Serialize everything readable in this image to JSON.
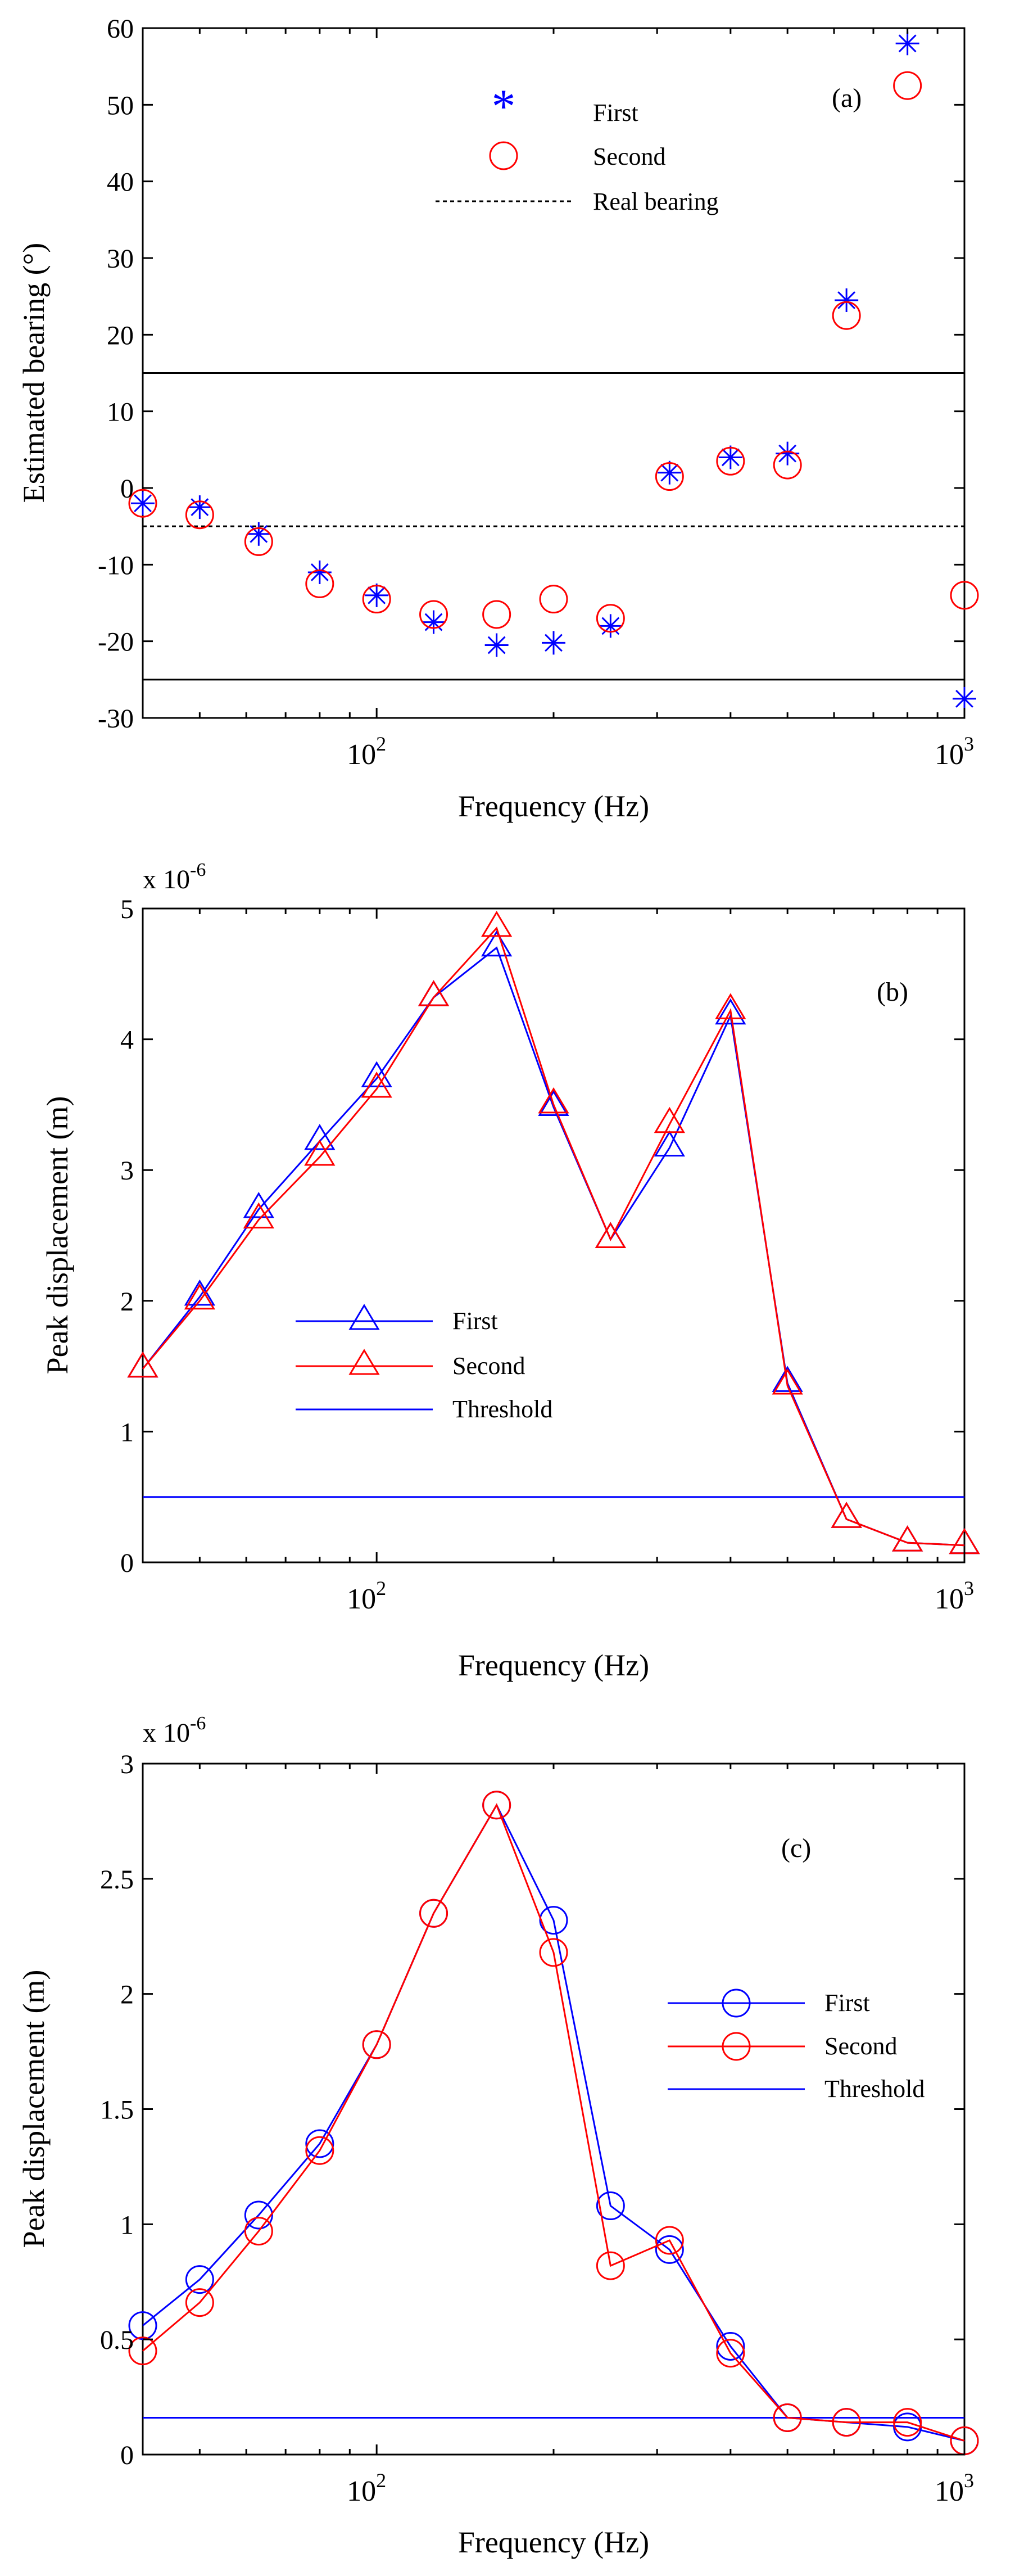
{
  "colors": {
    "first": "#0000ff",
    "second": "#ff0000",
    "axis": "#000000"
  },
  "chart_data": [
    {
      "id": "a",
      "type": "scatter",
      "panel_label": "(a)",
      "xlabel": "Frequency (Hz)",
      "ylabel": "Estimated bearing (°)",
      "xscale": "log",
      "xlim": [
        40,
        1000
      ],
      "ylim": [
        -30,
        60
      ],
      "yticks": [
        -30,
        -20,
        -10,
        0,
        10,
        20,
        30,
        40,
        50,
        60
      ],
      "ytick_labels": [
        "-30",
        "-20",
        "-10",
        "0",
        "10",
        "20",
        "30",
        "40",
        "50",
        "60"
      ],
      "xtick_labels": [
        {
          "base": "10",
          "exp": "2",
          "value": 100
        },
        {
          "base": "10",
          "exp": "3",
          "value": 1000
        }
      ],
      "legend_position": "top-center",
      "series": [
        {
          "name": "First",
          "marker": "asterisk",
          "color": "#0000ff",
          "line": false,
          "x": [
            40,
            50,
            63,
            80,
            100,
            125,
            160,
            200,
            250,
            315,
            400,
            500,
            630,
            800,
            1000
          ],
          "y": [
            -2,
            -2.5,
            -6,
            -11,
            -14,
            -17.5,
            -20.5,
            -20.2,
            -18,
            2,
            4,
            4.5,
            24.5,
            58,
            -27.5
          ]
        },
        {
          "name": "Second",
          "marker": "circle",
          "color": "#ff0000",
          "line": false,
          "x": [
            40,
            50,
            63,
            80,
            100,
            125,
            160,
            200,
            250,
            315,
            400,
            500,
            630,
            800,
            1000
          ],
          "y": [
            -2,
            -3.5,
            -7,
            -12.5,
            -14.5,
            -16.5,
            -16.5,
            -14.5,
            -17,
            1.5,
            3.5,
            3,
            22.5,
            52.5,
            -14
          ]
        },
        {
          "name": "Real bearing",
          "marker": "none",
          "color": "#000000",
          "line": "dashed",
          "hline": -5
        }
      ],
      "reference_lines": [
        15,
        -25
      ]
    },
    {
      "id": "b",
      "type": "line",
      "panel_label": "(b)",
      "xlabel": "Frequency (Hz)",
      "ylabel": "Peak displacement (m)",
      "scale_label": "x 10",
      "scale_exp": "-6",
      "xscale": "log",
      "xlim": [
        40,
        1000
      ],
      "ylim": [
        0,
        5
      ],
      "yticks": [
        0,
        1,
        2,
        3,
        4,
        5
      ],
      "ytick_labels": [
        "0",
        "1",
        "2",
        "3",
        "4",
        "5"
      ],
      "xtick_labels": [
        {
          "base": "10",
          "exp": "2",
          "value": 100
        },
        {
          "base": "10",
          "exp": "3",
          "value": 1000
        }
      ],
      "legend_position": "center-left",
      "series": [
        {
          "name": "First",
          "marker": "triangle",
          "color": "#0000ff",
          "line": "solid",
          "x": [
            40,
            50,
            63,
            80,
            100,
            125,
            160,
            200,
            250,
            315,
            400,
            500,
            630,
            800,
            1000
          ],
          "y": [
            1.48,
            2.03,
            2.7,
            3.22,
            3.7,
            4.32,
            4.7,
            3.48,
            2.47,
            3.17,
            4.18,
            1.37,
            0.33,
            0.15,
            0.13
          ]
        },
        {
          "name": "Second",
          "marker": "triangle",
          "color": "#ff0000",
          "line": "solid",
          "x": [
            40,
            50,
            63,
            80,
            100,
            125,
            160,
            200,
            250,
            315,
            400,
            500,
            630,
            800,
            1000
          ],
          "y": [
            1.48,
            2.0,
            2.62,
            3.1,
            3.62,
            4.32,
            4.85,
            3.5,
            2.47,
            3.35,
            4.22,
            1.35,
            0.33,
            0.15,
            0.13
          ]
        },
        {
          "name": "Threshold",
          "marker": "none",
          "color": "#0000ff",
          "line": "solid",
          "hline": 0.5
        }
      ]
    },
    {
      "id": "c",
      "type": "line",
      "panel_label": "(c)",
      "xlabel": "Frequency (Hz)",
      "ylabel": "Peak displacement (m)",
      "scale_label": "x 10",
      "scale_exp": "-6",
      "xscale": "log",
      "xlim": [
        40,
        1000
      ],
      "ylim": [
        0,
        3
      ],
      "yticks": [
        0,
        0.5,
        1,
        1.5,
        2,
        2.5,
        3
      ],
      "ytick_labels": [
        "0",
        "0.5",
        "1",
        "1.5",
        "2",
        "2.5",
        "3"
      ],
      "xtick_labels": [
        {
          "base": "10",
          "exp": "2",
          "value": 100
        },
        {
          "base": "10",
          "exp": "3",
          "value": 1000
        }
      ],
      "legend_position": "center-right",
      "series": [
        {
          "name": "First",
          "marker": "circle",
          "color": "#0000ff",
          "line": "solid",
          "x": [
            40,
            50,
            63,
            80,
            100,
            125,
            160,
            200,
            250,
            315,
            400,
            500,
            630,
            800,
            1000
          ],
          "y": [
            0.56,
            0.76,
            1.04,
            1.35,
            1.78,
            2.35,
            2.82,
            2.32,
            1.08,
            0.89,
            0.47,
            0.16,
            0.14,
            0.12,
            0.06
          ]
        },
        {
          "name": "Second",
          "marker": "circle",
          "color": "#ff0000",
          "line": "solid",
          "x": [
            40,
            50,
            63,
            80,
            100,
            125,
            160,
            200,
            250,
            315,
            400,
            500,
            630,
            800,
            1000
          ],
          "y": [
            0.45,
            0.66,
            0.97,
            1.32,
            1.78,
            2.35,
            2.82,
            2.18,
            0.82,
            0.93,
            0.44,
            0.16,
            0.14,
            0.14,
            0.06
          ]
        },
        {
          "name": "Threshold",
          "marker": "none",
          "color": "#0000ff",
          "line": "solid",
          "hline": 0.16
        }
      ]
    }
  ]
}
